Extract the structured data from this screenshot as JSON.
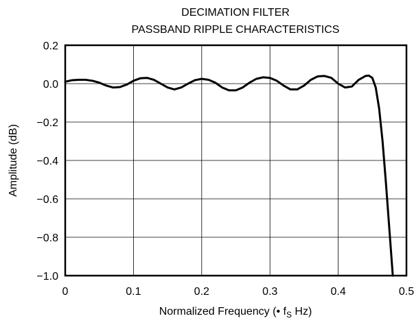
{
  "chart_data": {
    "type": "line",
    "title": "DECIMATION FILTER",
    "subtitle": "PASSBAND RIPPLE CHARACTERISTICS",
    "xlabel": "Normalized Frequency (• f",
    "xlabel_subscript": "S",
    "xlabel_suffix": " Hz)",
    "ylabel": "Amplitude (dB)",
    "xlim": [
      0,
      0.5
    ],
    "ylim": [
      -1.0,
      0.2
    ],
    "grid": true,
    "x_ticks": [
      0,
      0.1,
      0.2,
      0.3,
      0.4,
      0.5
    ],
    "x_tick_labels": [
      "0",
      "0.1",
      "0.2",
      "0.3",
      "0.4",
      "0.5"
    ],
    "y_ticks": [
      0.2,
      0.0,
      -0.2,
      -0.4,
      -0.6,
      -0.8,
      -1.0
    ],
    "y_tick_labels": [
      "0.2",
      "0.0",
      "−0.2",
      "−0.4",
      "−0.6",
      "−0.8",
      "−1.0"
    ],
    "series": [
      {
        "color": "#000000",
        "x": [
          0,
          0.01,
          0.02,
          0.03,
          0.04,
          0.05,
          0.06,
          0.07,
          0.08,
          0.09,
          0.1,
          0.11,
          0.12,
          0.13,
          0.14,
          0.15,
          0.16,
          0.17,
          0.18,
          0.19,
          0.2,
          0.21,
          0.22,
          0.23,
          0.24,
          0.25,
          0.26,
          0.27,
          0.28,
          0.29,
          0.3,
          0.31,
          0.32,
          0.33,
          0.34,
          0.35,
          0.36,
          0.37,
          0.38,
          0.39,
          0.4,
          0.41,
          0.42,
          0.43,
          0.44,
          0.445,
          0.45,
          0.455,
          0.46,
          0.465,
          0.47,
          0.475,
          0.48
        ],
        "y": [
          0.01,
          0.018,
          0.02,
          0.02,
          0.015,
          0.005,
          -0.01,
          -0.02,
          -0.018,
          -0.005,
          0.015,
          0.028,
          0.03,
          0.02,
          0.0,
          -0.02,
          -0.03,
          -0.02,
          0.0,
          0.018,
          0.025,
          0.02,
          0.005,
          -0.02,
          -0.035,
          -0.035,
          -0.02,
          0.005,
          0.025,
          0.033,
          0.03,
          0.015,
          -0.01,
          -0.03,
          -0.03,
          -0.01,
          0.02,
          0.038,
          0.04,
          0.03,
          0.0,
          -0.02,
          -0.015,
          0.02,
          0.04,
          0.042,
          0.03,
          -0.02,
          -0.13,
          -0.3,
          -0.52,
          -0.76,
          -1.0
        ]
      }
    ]
  }
}
